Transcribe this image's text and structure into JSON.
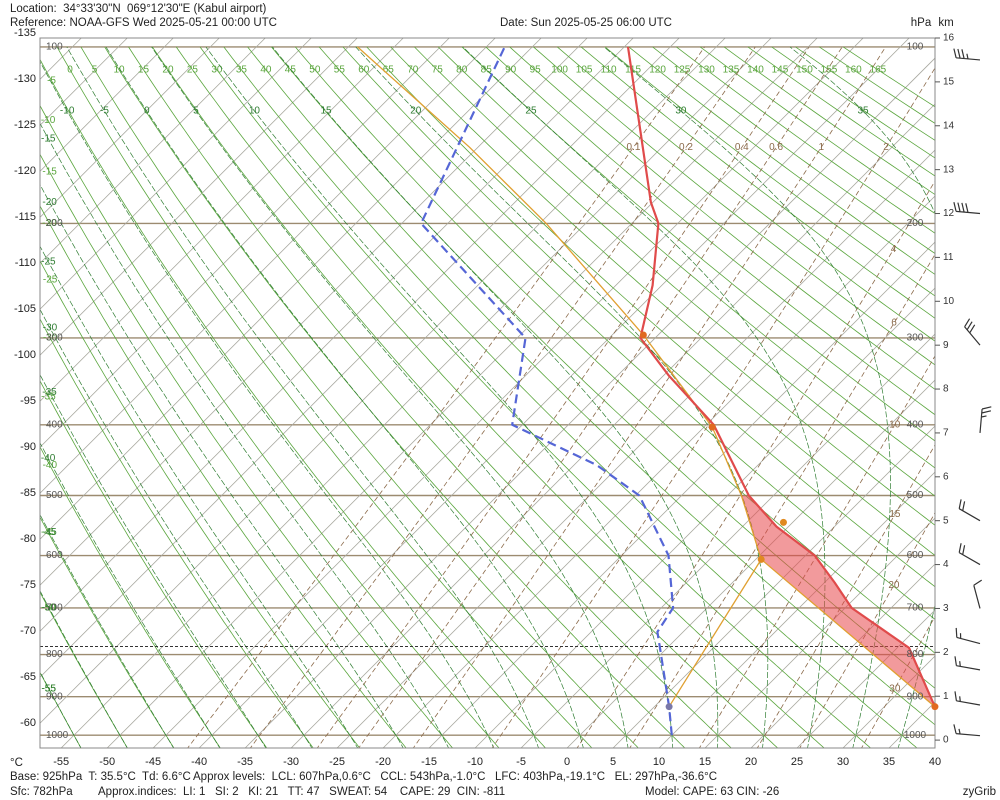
{
  "header": {
    "location": "Location:  34°33'30\"N  069°12'30\"E (Kabul airport)",
    "reference": "Reference: NOAA-GFS Wed 2025-05-21 00:00 UTC",
    "date": "Date: Sun 2025-05-25 06:00 UTC"
  },
  "footer": {
    "base": "Base: 925hPa  T: 35.5°C  Td: 6.6°C",
    "levels": "Approx levels:  LCL: 607hPa,0.6°C   CCL: 543hPa,-1.0°C   LFC: 403hPa,-19.1°C   EL: 297hPa,-36.6°C",
    "sfc": "Sfc: 782hPa",
    "indices": "Approx.indices:  LI: 1   SI: 2   KI: 21   TT: 47   SWEAT: 54    CAPE: 29  CIN: -811",
    "model": "Model: CAPE: 63 CIN: -26",
    "credit": "zyGrib"
  },
  "chart_data": {
    "type": "skewt",
    "x_unit_label": "°C",
    "pressure_label": "hPa",
    "height_label": "km",
    "xlim": [
      -57.3,
      40
    ],
    "xticks": [
      -55,
      -50,
      -45,
      -40,
      -35,
      -30,
      -25,
      -20,
      -15,
      -10,
      -5,
      0,
      5,
      10,
      15,
      20,
      25,
      30,
      35,
      40
    ],
    "isotherm_ticks": [
      -135,
      -130,
      -125,
      -120,
      -115,
      -110,
      -105,
      -100,
      -95,
      -90,
      -85,
      -80,
      -75,
      -70,
      -65,
      -60
    ],
    "ylim": [
      -0.18,
      16
    ],
    "yticks": [
      0,
      1,
      2,
      3,
      4,
      5,
      6,
      7,
      8,
      9,
      10,
      11,
      12,
      13,
      14,
      15,
      16
    ],
    "pressure_levels": [
      100,
      200,
      300,
      400,
      500,
      600,
      700,
      800,
      900,
      1000
    ],
    "sfc_pressure": 782,
    "dry_adiabats": [
      -55,
      -50,
      -45,
      -40,
      -35,
      -30,
      -25,
      -20,
      -15,
      -10,
      -5,
      0,
      5,
      10,
      15,
      20,
      25,
      30,
      35,
      40,
      45,
      50,
      55,
      60,
      65,
      70,
      75,
      80,
      85,
      90,
      95,
      100,
      105,
      110,
      115,
      120,
      125,
      130,
      135,
      140,
      145,
      150,
      155,
      160,
      165
    ],
    "moist_adiabats": [
      -55,
      -50,
      -45,
      -40,
      -35,
      -30,
      -25,
      -20,
      -15,
      -10,
      -5,
      0,
      5,
      10,
      15,
      20,
      25,
      30,
      35
    ],
    "mixing_ratios": [
      0.1,
      0.2,
      0.4,
      0.6,
      1,
      2,
      4,
      6,
      10,
      15,
      20,
      30
    ],
    "colors": {
      "isotherms": "#a9a9a0",
      "isobars": "#9c8b70",
      "dry_adiabats": "#5ba63e",
      "moist_adiabats": "#2f7d32",
      "mixing_ratios": "#8b6a4a",
      "cin_fill": "#e8474a",
      "surface_line": "#333333",
      "winds": "#333333"
    },
    "temperature": {
      "color": "#e04b4b",
      "pressure": [
        925,
        785,
        700,
        650,
        600,
        550,
        500,
        400,
        340,
        300,
        250,
        200,
        185,
        100
      ],
      "values": [
        35.5,
        26.3,
        15.7,
        11.1,
        6.0,
        -1.3,
        -7.7,
        -19.2,
        -29.5,
        -36.6,
        -41,
        -47.1,
        -50.2,
        -69.6
      ]
    },
    "dewpoint": {
      "color": "#5566d6",
      "pressure": [
        1000,
        925,
        790,
        750,
        700,
        600,
        500,
        455,
        400,
        300,
        200,
        100
      ],
      "values": [
        10.0,
        6.6,
        -0.5,
        -2.8,
        -3.7,
        -9.9,
        -19.6,
        -27.5,
        -41.1,
        -49.1,
        -72.9,
        -83.0
      ]
    },
    "parcel": {
      "color": "#e0a030",
      "pressure": [
        925,
        607,
        500,
        403,
        297,
        200,
        150,
        100
      ],
      "values": [
        35.5,
        0.6,
        -8.5,
        -19.1,
        -36.6,
        -59.3,
        -75.9,
        -99
      ]
    },
    "parcel_mixing": {
      "color": "#e0a030",
      "pressure": [
        925,
        607
      ],
      "values": [
        6.6,
        0.6
      ]
    },
    "markers": {
      "pressure": [
        925,
        925,
        607,
        543,
        403,
        297
      ],
      "values": [
        35.5,
        6.6,
        0.6,
        -1.0,
        -19.1,
        -36.6
      ],
      "colors": [
        "#e06a20",
        "#7a78a8",
        "#e08a20",
        "#e08a20",
        "#e06a20",
        "#e06a20"
      ]
    },
    "winds": {
      "heights": [
        0.1,
        0.8,
        1.6,
        2.2,
        3.0,
        4.0,
        5.0,
        7.0,
        9.0,
        12.0,
        15.5
      ],
      "speeds": [
        15,
        15,
        15,
        15,
        10,
        20,
        20,
        25,
        30,
        40,
        35
      ],
      "directions": [
        275,
        280,
        280,
        285,
        345,
        300,
        300,
        5,
        320,
        275,
        275
      ]
    }
  }
}
